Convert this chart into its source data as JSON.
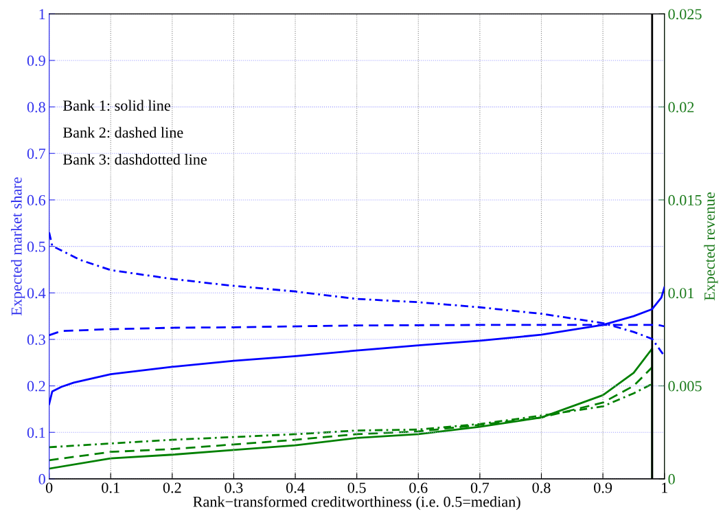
{
  "chart_data": {
    "type": "line",
    "xlabel": "Rank−transformed creditworthiness (i.e. 0.5=median)",
    "ylabel": "Expected market share",
    "y2label": "Expected revenue",
    "xlim": [
      0,
      1
    ],
    "xticks": [
      0,
      0.1,
      0.2,
      0.3,
      0.4,
      0.5,
      0.6,
      0.7,
      0.8,
      0.9,
      1
    ],
    "ylim": [
      0,
      1
    ],
    "yticks": [
      0,
      0.1,
      0.2,
      0.3,
      0.4,
      0.5,
      0.6,
      0.7,
      0.8,
      0.9,
      1
    ],
    "y2lim": [
      0,
      0.025
    ],
    "y2ticks": [
      0,
      0.005,
      0.01,
      0.015,
      0.02,
      0.025
    ],
    "grid": true,
    "legend": false,
    "annotations": [
      "Bank 1: solid line",
      "Bank 2: dashed line",
      "Bank 3: dashdotted line"
    ],
    "ref_lines": [
      {
        "axis": "x",
        "value": 0.98,
        "color": "#000000",
        "line_style": "solid"
      }
    ],
    "series": [
      {
        "color": "#0000ff",
        "line_style": "solid",
        "x": [
          0,
          0.005,
          0.02,
          0.04,
          0.1,
          0.2,
          0.3,
          0.4,
          0.5,
          0.6,
          0.7,
          0.8,
          0.9,
          0.95,
          0.98,
          0.995,
          1
        ],
        "values": [
          0.161,
          0.188,
          0.198,
          0.207,
          0.225,
          0.241,
          0.254,
          0.264,
          0.276,
          0.287,
          0.297,
          0.31,
          0.331,
          0.35,
          0.365,
          0.39,
          0.412
        ]
      },
      {
        "color": "#0000ff",
        "line_style": "dashed",
        "x": [
          0,
          0.02,
          0.1,
          0.2,
          0.3,
          0.5,
          0.7,
          0.9,
          0.98,
          0.99,
          1
        ],
        "values": [
          0.309,
          0.318,
          0.322,
          0.325,
          0.326,
          0.33,
          0.331,
          0.331,
          0.331,
          0.331,
          0.328
        ]
      },
      {
        "color": "#0000ff",
        "line_style": "dashdot",
        "x": [
          0,
          0.005,
          0.05,
          0.1,
          0.2,
          0.3,
          0.4,
          0.5,
          0.6,
          0.7,
          0.8,
          0.9,
          0.95,
          0.98,
          1
        ],
        "values": [
          0.53,
          0.501,
          0.471,
          0.449,
          0.43,
          0.415,
          0.403,
          0.387,
          0.38,
          0.369,
          0.355,
          0.335,
          0.316,
          0.301,
          0.264
        ]
      },
      {
        "color": "#008000",
        "line_style": "solid",
        "axis": "y2",
        "x": [
          0,
          0.1,
          0.2,
          0.3,
          0.4,
          0.5,
          0.6,
          0.7,
          0.8,
          0.9,
          0.95,
          0.98,
          0.98
        ],
        "values": [
          0.00055,
          0.0011,
          0.0013,
          0.00155,
          0.0018,
          0.0022,
          0.0024,
          0.0028,
          0.0033,
          0.0045,
          0.0057,
          0.007,
          0
        ]
      },
      {
        "color": "#008000",
        "line_style": "dashed",
        "axis": "y2",
        "x": [
          0,
          0.1,
          0.2,
          0.3,
          0.4,
          0.5,
          0.6,
          0.7,
          0.8,
          0.9,
          0.95,
          0.98
        ],
        "values": [
          0.001,
          0.00145,
          0.0016,
          0.00185,
          0.0021,
          0.0024,
          0.00255,
          0.0029,
          0.0033,
          0.0041,
          0.005,
          0.006
        ]
      },
      {
        "color": "#008000",
        "line_style": "dashdot",
        "axis": "y2",
        "x": [
          0,
          0.1,
          0.2,
          0.3,
          0.4,
          0.5,
          0.6,
          0.7,
          0.8,
          0.9,
          0.95,
          0.98
        ],
        "values": [
          0.0017,
          0.0019,
          0.0021,
          0.00225,
          0.0024,
          0.0026,
          0.00265,
          0.00295,
          0.0034,
          0.0039,
          0.0046,
          0.0051
        ]
      }
    ]
  }
}
